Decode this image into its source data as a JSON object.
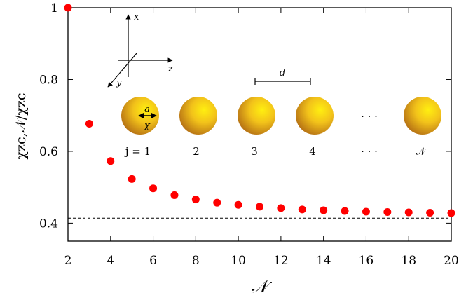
{
  "chart_data": {
    "type": "scatter",
    "x": [
      2,
      3,
      4,
      5,
      6,
      7,
      8,
      9,
      10,
      11,
      12,
      13,
      14,
      15,
      16,
      17,
      18,
      19,
      20
    ],
    "series": [
      {
        "values": [
          1.0,
          0.677,
          0.573,
          0.523,
          0.497,
          0.478,
          0.466,
          0.457,
          0.451,
          0.446,
          0.442,
          0.438,
          0.436,
          0.434,
          0.432,
          0.431,
          0.43,
          0.429,
          0.428
        ]
      }
    ],
    "xlim": [
      2,
      20
    ],
    "ylim": [
      0.35,
      1.0
    ],
    "xticks": [
      "2",
      "4",
      "6",
      "8",
      "10",
      "12",
      "14",
      "16",
      "18",
      "20"
    ],
    "yticks": [
      "0.4",
      "0.6",
      "0.8",
      "1"
    ],
    "xlabel": "𝒩",
    "ylabel": "χzc,𝒩/χzc",
    "reference_line": {
      "y": 0.414,
      "style": "dashed"
    },
    "marker_color": "#ff0000",
    "grid": false
  },
  "inset": {
    "axes": {
      "x": "x",
      "y": "y",
      "z": "z"
    },
    "spacing_label": "d",
    "radius_label": "a",
    "chi_label": "χ",
    "ellipsis": "· · ·",
    "sphere_labels": [
      "j = 1",
      "2",
      "3",
      "4",
      "· · ·",
      "𝒩"
    ],
    "sphere_colors": {
      "highlight": "#ffef10",
      "mid": "#f2c21a",
      "shadow": "#b06a14"
    }
  }
}
